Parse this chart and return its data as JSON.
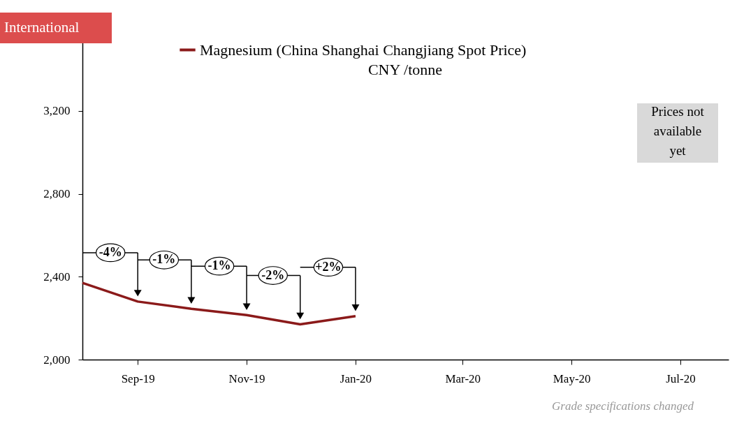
{
  "chart_data": {
    "type": "line",
    "subtitle": "CNY /tonne",
    "legend": "top",
    "x": [
      "2019-08",
      "2019-09",
      "2019-10",
      "2019-11",
      "2019-12",
      "2020-01"
    ],
    "series": [
      {
        "name": "Magnesium (China Shanghai Changjiang Spot Price)",
        "color": "#8b1a1a",
        "values": [
          2370,
          2280,
          2245,
          2215,
          2170,
          2210
        ]
      }
    ],
    "xlim": [
      "2019-08-01",
      "2020-07-28"
    ],
    "xticks": [
      {
        "value": "2019-09",
        "label": "Sep-19"
      },
      {
        "value": "2019-11",
        "label": "Nov-19"
      },
      {
        "value": "2020-01",
        "label": "Jan-20"
      },
      {
        "value": "2020-03",
        "label": "Mar-20"
      },
      {
        "value": "2020-05",
        "label": "May-20"
      },
      {
        "value": "2020-07",
        "label": "Jul-20"
      }
    ],
    "ylim": [
      2000,
      3600
    ],
    "yticks": [
      {
        "value": 2000,
        "label": "2,000"
      },
      {
        "value": 2400,
        "label": "2,400"
      },
      {
        "value": 2800,
        "label": "2,800"
      },
      {
        "value": 3200,
        "label": "3,200"
      }
    ],
    "grid": false,
    "marker": "none",
    "line_style": "solid",
    "annotations": [
      "International",
      "Prices not\navailable\nyet",
      "Grade specifications changed",
      "-4%",
      "-1%",
      "-1%",
      "-2%",
      "+2%"
    ]
  }
}
